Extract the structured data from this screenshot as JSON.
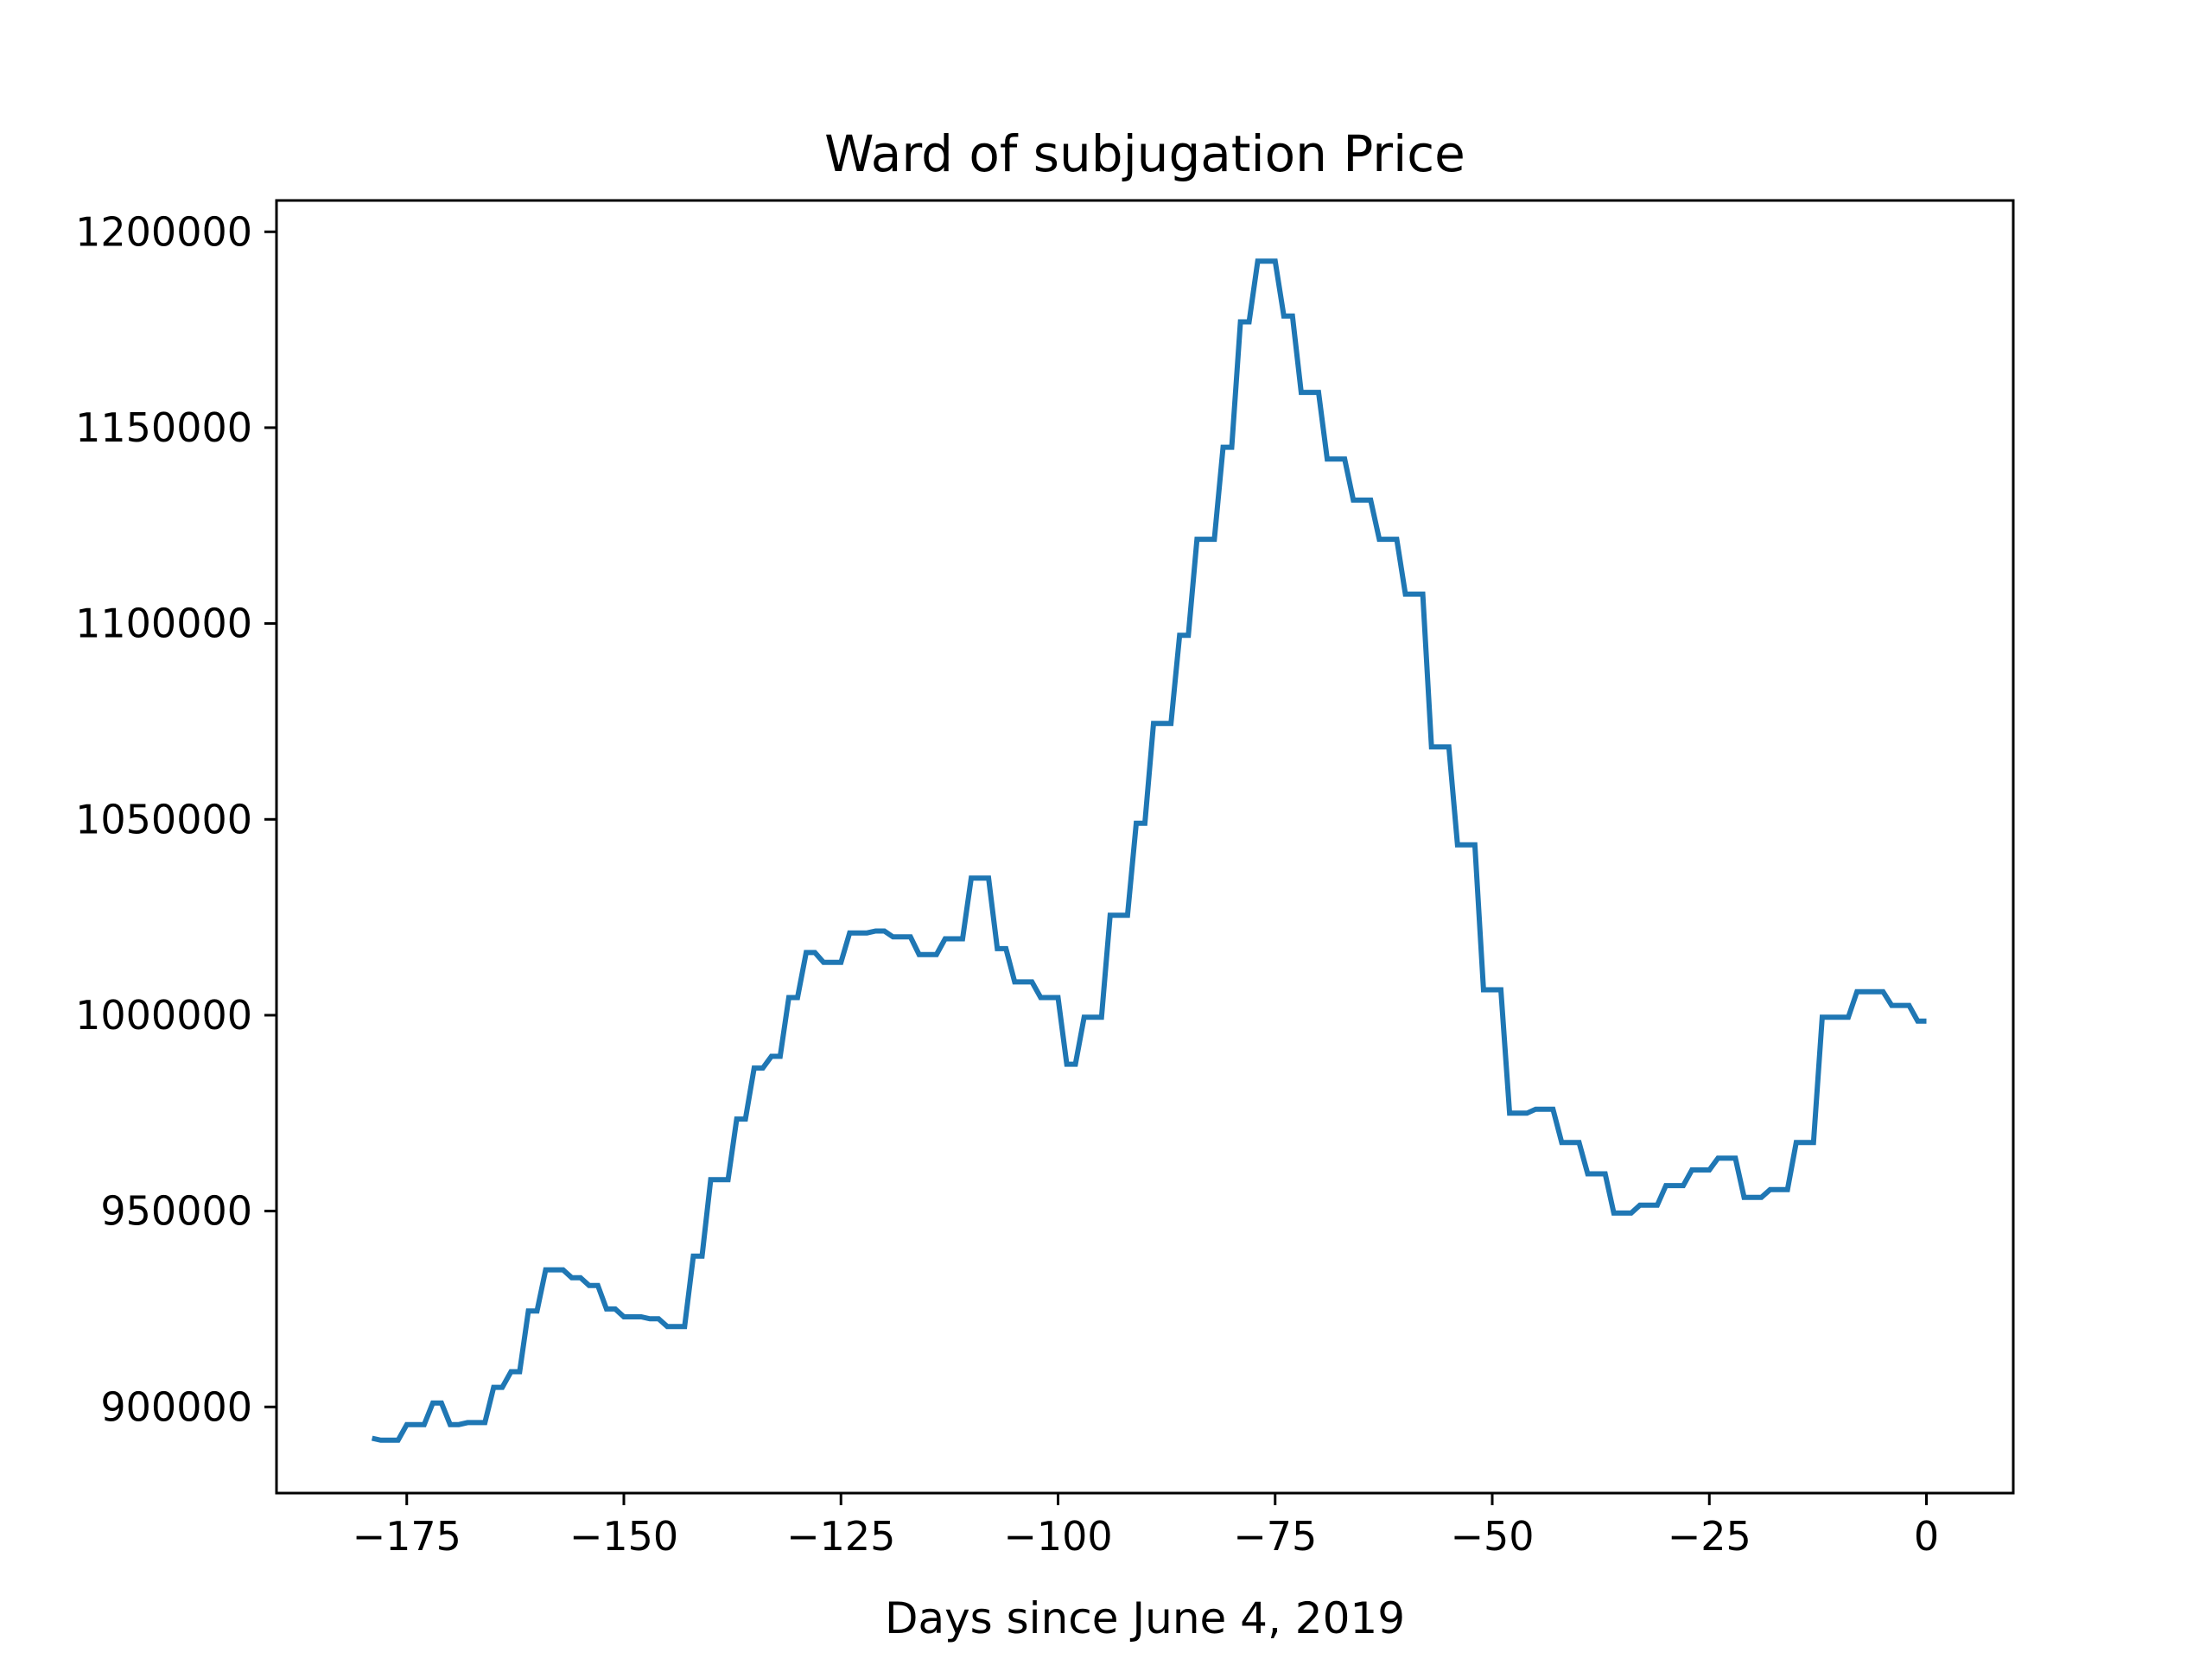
{
  "chart_data": {
    "type": "line",
    "title": "Ward of subjugation Price",
    "xlabel": "Days since June 4, 2019",
    "ylabel": "",
    "xlim": [
      -190,
      10
    ],
    "ylim": [
      878000,
      1208000
    ],
    "x_ticks": [
      -175,
      -150,
      -125,
      -100,
      -75,
      -50,
      -25,
      0
    ],
    "x_tick_labels": [
      "−175",
      "−150",
      "−125",
      "−100",
      "−75",
      "−50",
      "−25",
      "0"
    ],
    "y_ticks": [
      900000,
      950000,
      1000000,
      1050000,
      1100000,
      1150000,
      1200000
    ],
    "y_tick_labels": [
      "900000",
      "950000",
      "1000000",
      "1050000",
      "1100000",
      "1150000",
      "1200000"
    ],
    "grid": false,
    "legend": "none",
    "series": [
      {
        "color": "#1f77b4",
        "x": [
          -179,
          -178,
          -177,
          -176,
          -175,
          -174,
          -173,
          -172,
          -171,
          -170,
          -169,
          -168,
          -167,
          -166,
          -165,
          -164,
          -163,
          -162,
          -161,
          -160,
          -159,
          -158,
          -157,
          -156,
          -155,
          -154,
          -153,
          -152,
          -151,
          -150,
          -149,
          -148,
          -147,
          -146,
          -145,
          -144,
          -143,
          -142,
          -141,
          -140,
          -139,
          -138,
          -137,
          -136,
          -135,
          -134,
          -133,
          -132,
          -131,
          -130,
          -129,
          -128,
          -127,
          -126,
          -125,
          -124,
          -123,
          -122,
          -121,
          -120,
          -119,
          -118,
          -117,
          -116,
          -115,
          -114,
          -113,
          -112,
          -111,
          -110,
          -109,
          -108,
          -107,
          -106,
          -105,
          -104,
          -103,
          -102,
          -101,
          -100,
          -99,
          -98,
          -97,
          -96,
          -95,
          -94,
          -93,
          -92,
          -91,
          -90,
          -89,
          -88,
          -87,
          -86,
          -85,
          -84,
          -83,
          -82,
          -81,
          -80,
          -79,
          -78,
          -77,
          -76,
          -75,
          -74,
          -73,
          -72,
          -71,
          -70,
          -69,
          -68,
          -67,
          -66,
          -65,
          -64,
          -63,
          -62,
          -61,
          -60,
          -59,
          -58,
          -57,
          -56,
          -55,
          -54,
          -53,
          -52,
          -51,
          -50,
          -49,
          -48,
          -47,
          -46,
          -45,
          -44,
          -43,
          -42,
          -41,
          -40,
          -39,
          -38,
          -37,
          -36,
          -35,
          -34,
          -33,
          -32,
          -31,
          -30,
          -29,
          -28,
          -27,
          -26,
          -25,
          -24,
          -23,
          -22,
          -21,
          -20,
          -19,
          -18,
          -17,
          -16,
          -15,
          -14,
          -13,
          -12,
          -11,
          -10,
          -9,
          -8,
          -7,
          -6,
          -5,
          -4,
          -3,
          -2,
          -1,
          0
        ],
        "y": [
          892000,
          891500,
          891500,
          891500,
          895500,
          895500,
          895500,
          901000,
          901000,
          895500,
          895500,
          896000,
          896000,
          896000,
          905000,
          905000,
          909000,
          909000,
          924500,
          924500,
          935000,
          935000,
          935000,
          933000,
          933000,
          931000,
          931000,
          925000,
          925000,
          923000,
          923000,
          923000,
          922500,
          922500,
          920500,
          920500,
          920500,
          938500,
          938500,
          958000,
          958000,
          958000,
          973500,
          973500,
          986500,
          986500,
          989500,
          989500,
          1004500,
          1004500,
          1016000,
          1016000,
          1013500,
          1013500,
          1013500,
          1021000,
          1021000,
          1021000,
          1021500,
          1021500,
          1020000,
          1020000,
          1020000,
          1015500,
          1015500,
          1015500,
          1019500,
          1019500,
          1019500,
          1035000,
          1035000,
          1035000,
          1017000,
          1017000,
          1008500,
          1008500,
          1008500,
          1004500,
          1004500,
          1004500,
          987500,
          987500,
          999500,
          999500,
          999500,
          1025500,
          1025500,
          1025500,
          1049000,
          1049000,
          1074500,
          1074500,
          1074500,
          1097000,
          1097000,
          1121500,
          1121500,
          1121500,
          1145000,
          1145000,
          1177000,
          1177000,
          1192500,
          1192500,
          1192500,
          1178500,
          1178500,
          1159000,
          1159000,
          1159000,
          1142000,
          1142000,
          1142000,
          1131500,
          1131500,
          1131500,
          1121500,
          1121500,
          1121500,
          1107500,
          1107500,
          1107500,
          1068500,
          1068500,
          1068500,
          1043500,
          1043500,
          1043500,
          1006500,
          1006500,
          1006500,
          975000,
          975000,
          975000,
          976000,
          976000,
          976000,
          967500,
          967500,
          967500,
          959500,
          959500,
          959500,
          949500,
          949500,
          949500,
          951500,
          951500,
          951500,
          956500,
          956500,
          956500,
          960500,
          960500,
          960500,
          963500,
          963500,
          963500,
          953500,
          953500,
          953500,
          955500,
          955500,
          955500,
          967500,
          967500,
          967500,
          999500,
          999500,
          999500,
          999500,
          1006000,
          1006000,
          1006000,
          1006000,
          1002500,
          1002500,
          1002500,
          998500,
          998500
        ]
      }
    ]
  }
}
